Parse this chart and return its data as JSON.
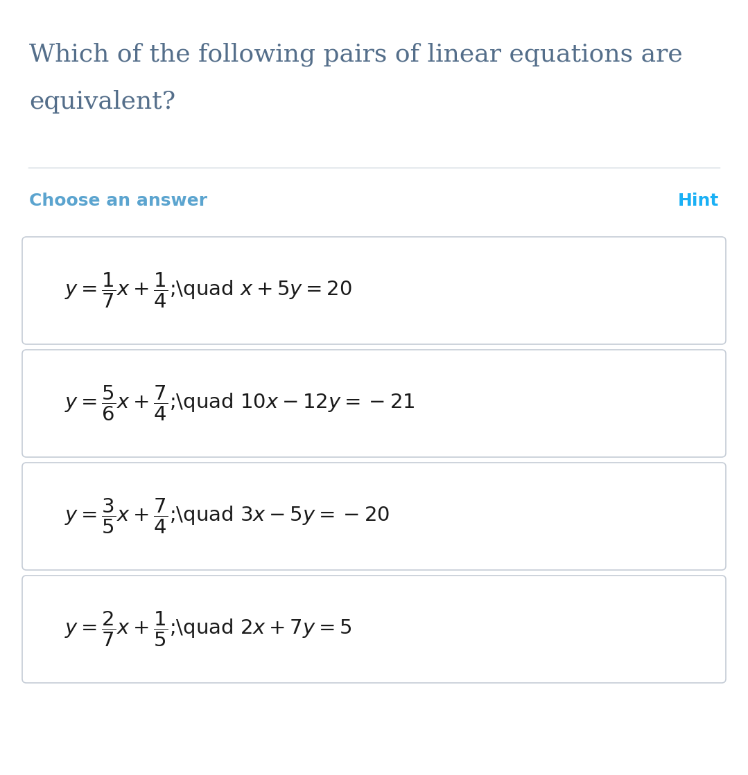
{
  "title_line1": "Which of the following pairs of linear equations are",
  "title_line2": "equivalent?",
  "title_color": "#546e8a",
  "title_fontsize": 26,
  "choose_answer_text": "Choose an answer",
  "hint_text": "Hint",
  "choose_color": "#5ba4cf",
  "hint_color": "#1ab0f5",
  "header_fontsize": 18,
  "options_latex": [
    "$y = \\dfrac{1}{7}x + \\dfrac{1}{4}$;\\quad $x + 5y = 20$",
    "$y = \\dfrac{5}{6}x + \\dfrac{7}{4}$;\\quad $10x - 12y = -21$",
    "$y = \\dfrac{3}{5}x + \\dfrac{7}{4}$;\\quad $3x - 5y = -20$",
    "$y = \\dfrac{2}{7}x + \\dfrac{1}{5}$;\\quad $2x + 7y = 5$"
  ],
  "option_fontsize": 21,
  "bg_color": "#ffffff",
  "box_bg": "#ffffff",
  "box_border": "#c5ccd6",
  "divider_color": "#d0d7df",
  "fig_width": 10.79,
  "fig_height": 11.19,
  "dpi": 100
}
